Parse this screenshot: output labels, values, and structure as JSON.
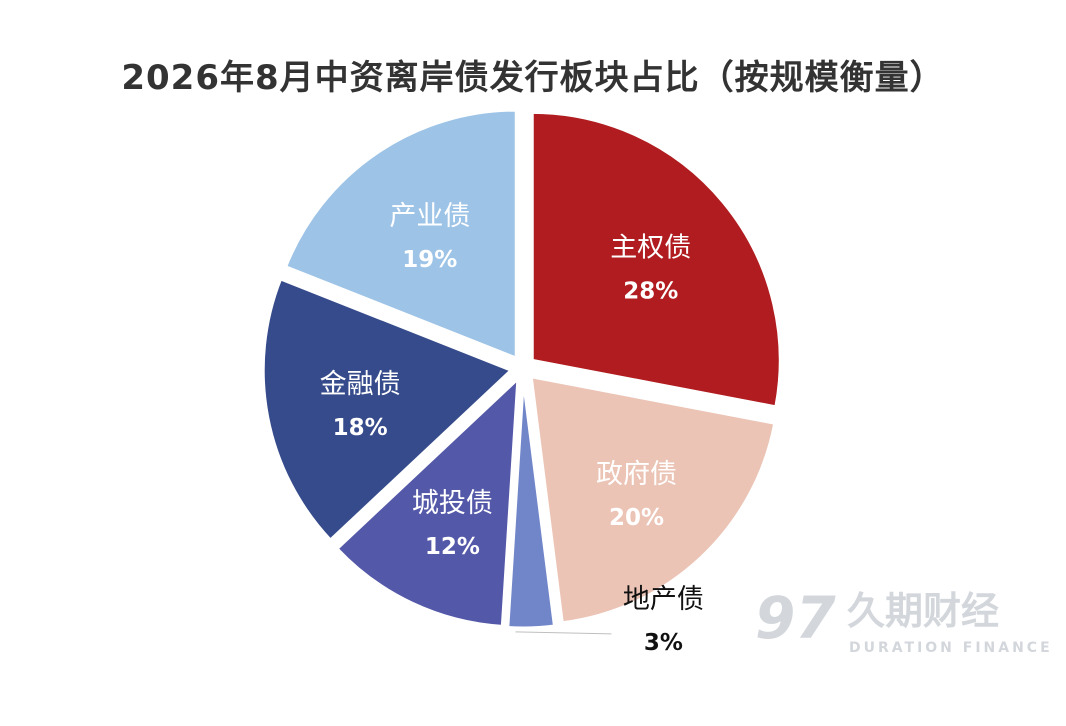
{
  "chart_data": {
    "type": "pie",
    "title": "2026年8月中资离岸债发行板块占比（按规模衡量）",
    "slices": [
      {
        "name": "主权债",
        "value": 28,
        "label": "28%",
        "color": "#b01c1f",
        "label_color": "#ffffff"
      },
      {
        "name": "政府债",
        "value": 20,
        "label": "20%",
        "color": "#ebc4b6",
        "label_color": "#ffffff"
      },
      {
        "name": "地产债",
        "value": 3,
        "label": "3%",
        "color": "#7185c9",
        "label_color": "#111111"
      },
      {
        "name": "城投债",
        "value": 12,
        "label": "12%",
        "color": "#5458a8",
        "label_color": "#ffffff"
      },
      {
        "name": "金融债",
        "value": 18,
        "label": "18%",
        "color": "#364b8b",
        "label_color": "#ffffff"
      },
      {
        "name": "产业债",
        "value": 19,
        "label": "19%",
        "color": "#9dc3e6",
        "label_color": "#ffffff"
      }
    ]
  },
  "watermark": {
    "logo_text": "97",
    "brand_cn": "久期财经",
    "brand_en": "DURATION FINANCE"
  }
}
